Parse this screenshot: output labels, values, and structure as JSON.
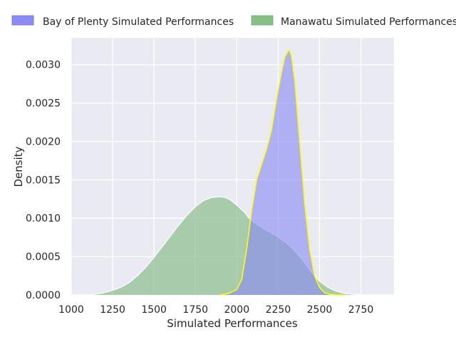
{
  "chart_data": {
    "type": "area",
    "title": "",
    "xlabel": "Simulated Performances",
    "ylabel": "Density",
    "xlim": [
      1000,
      2950
    ],
    "ylim": [
      0,
      0.00335
    ],
    "xticks": [
      1000,
      1250,
      1500,
      1750,
      2000,
      2250,
      2500,
      2750
    ],
    "yticks": [
      0.0,
      0.0005,
      0.001,
      0.0015,
      0.002,
      0.0025,
      0.003
    ],
    "ytick_labels": [
      "0.0000",
      "0.0005",
      "0.0010",
      "0.0015",
      "0.0020",
      "0.0025",
      "0.0030"
    ],
    "grid": true,
    "legend_position": "top",
    "series": [
      {
        "name": "Bay of Plenty Simulated Performances",
        "color": "#8b8bf5",
        "edge_color": "#ffff00",
        "x": [
          1900,
          1950,
          2000,
          2030,
          2060,
          2090,
          2120,
          2150,
          2180,
          2210,
          2240,
          2270,
          2290,
          2310,
          2320,
          2330,
          2350,
          2380,
          2410,
          2440,
          2470,
          2500,
          2530,
          2560,
          2600,
          2650
        ],
        "y": [
          0.0,
          2e-05,
          7e-05,
          0.0002,
          0.0006,
          0.0011,
          0.0015,
          0.0017,
          0.0019,
          0.00215,
          0.00255,
          0.0029,
          0.0031,
          0.00318,
          0.00318,
          0.00312,
          0.0028,
          0.002,
          0.0012,
          0.0006,
          0.00025,
          0.0001,
          3e-05,
          1e-05,
          0.0,
          0.0
        ]
      },
      {
        "name": "Manawatu Simulated Performances",
        "color": "#8fbf8f",
        "edge_color": "#ffffff",
        "x": [
          1090,
          1150,
          1200,
          1250,
          1300,
          1350,
          1400,
          1450,
          1500,
          1550,
          1600,
          1650,
          1700,
          1750,
          1800,
          1850,
          1900,
          1930,
          1960,
          2000,
          2050,
          2070,
          2100,
          2150,
          2200,
          2250,
          2300,
          2350,
          2400,
          2450,
          2500,
          2550,
          2600,
          2650,
          2700,
          2750,
          2800,
          2850
        ],
        "y": [
          0.0,
          1e-05,
          3e-05,
          6e-05,
          0.0001,
          0.00016,
          0.00025,
          0.00036,
          0.00049,
          0.00063,
          0.00077,
          0.00091,
          0.00104,
          0.00115,
          0.00123,
          0.00127,
          0.00128,
          0.00127,
          0.00124,
          0.00117,
          0.00107,
          0.00101,
          0.00095,
          0.00088,
          0.00082,
          0.00075,
          0.00068,
          0.00058,
          0.00045,
          0.0003,
          0.00018,
          0.0001,
          5e-05,
          2e-05,
          1e-05,
          0.0,
          0.0,
          0.0
        ]
      }
    ]
  }
}
